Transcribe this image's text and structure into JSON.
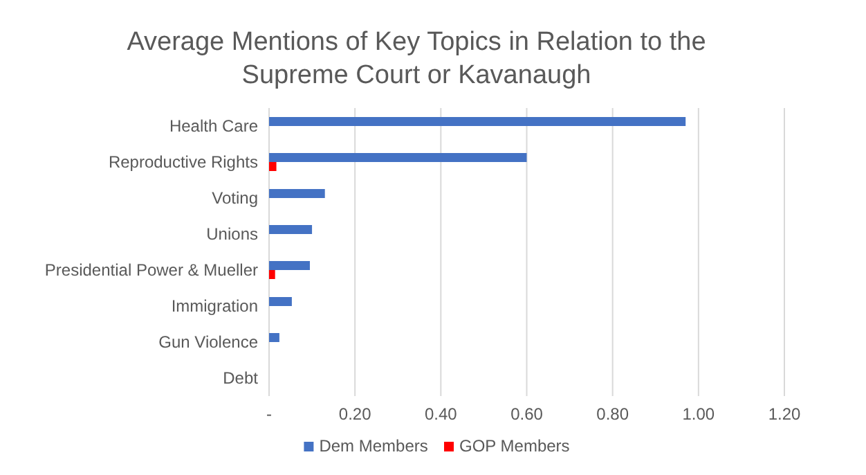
{
  "chart_data": {
    "type": "bar",
    "orientation": "horizontal",
    "title": "Average Mentions of Key Topics in Relation to the Supreme Court or Kavanaugh",
    "categories": [
      "Health Care",
      "Reproductive Rights",
      "Voting",
      "Unions",
      "Presidential Power & Mueller",
      "Immigration",
      "Gun Violence",
      "Debt"
    ],
    "series": [
      {
        "name": "Dem Members",
        "color": "#4472c4",
        "values": [
          0.97,
          0.6,
          0.13,
          0.1,
          0.095,
          0.053,
          0.024,
          0
        ]
      },
      {
        "name": "GOP Members",
        "color": "#ff0000",
        "values": [
          0,
          0.017,
          0,
          0,
          0.014,
          0,
          0,
          0
        ]
      }
    ],
    "xlim": [
      0,
      1.2
    ],
    "xticks": [
      {
        "value": 0,
        "label": "-"
      },
      {
        "value": 0.2,
        "label": "0.20"
      },
      {
        "value": 0.4,
        "label": "0.40"
      },
      {
        "value": 0.6,
        "label": "0.60"
      },
      {
        "value": 0.8,
        "label": "0.80"
      },
      {
        "value": 1,
        "label": "1.00"
      },
      {
        "value": 1.2,
        "label": "1.20"
      }
    ],
    "grid": "x",
    "legend": "bottom"
  }
}
